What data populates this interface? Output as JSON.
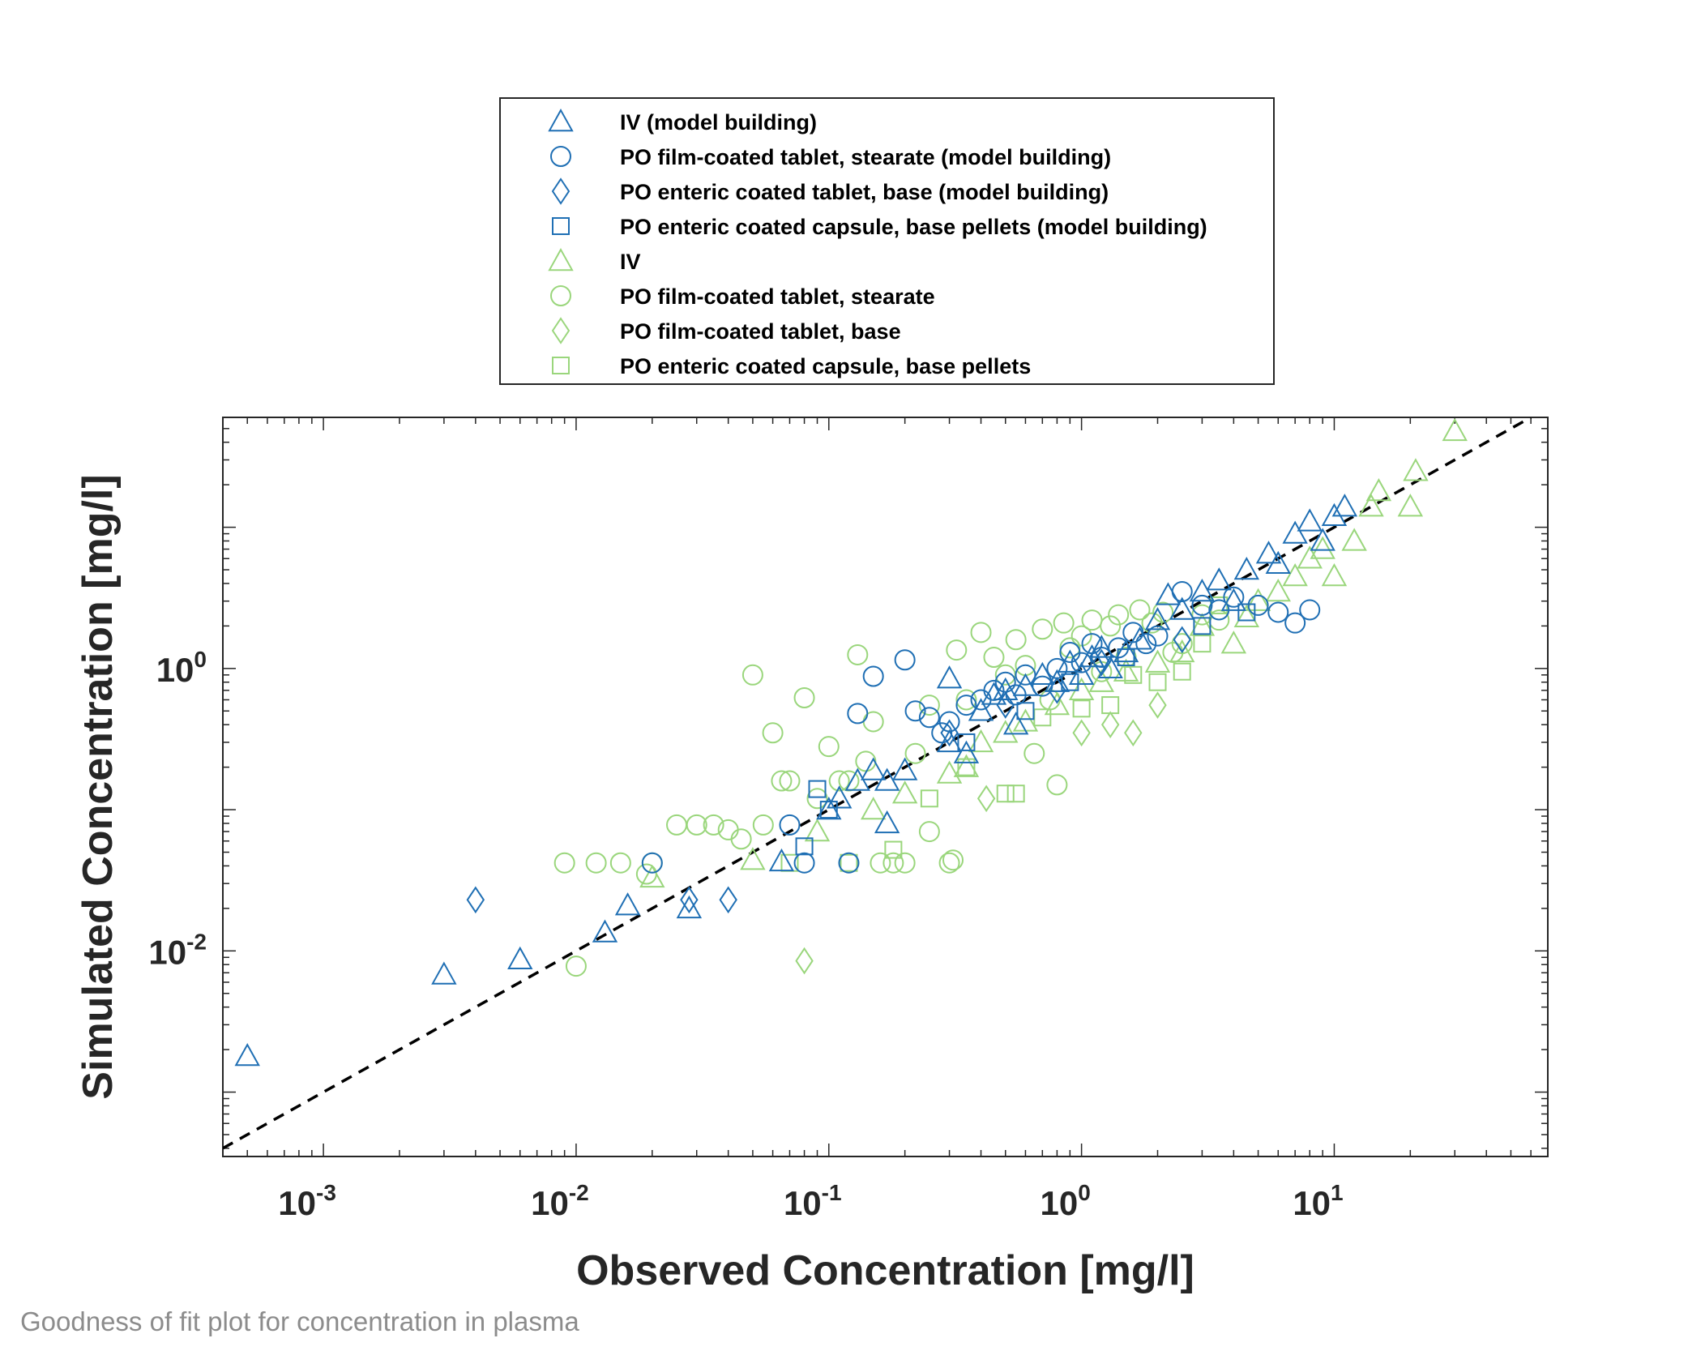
{
  "caption": "Goodness of fit plot for concentration in plasma",
  "colors": {
    "model_building": "#1f6fb4",
    "validation": "#9ad67c",
    "axes": "#262626",
    "identity_line": "#000000"
  },
  "chart_data": {
    "type": "scatter",
    "xscale": "log",
    "yscale": "log",
    "xlabel": "Observed Concentration [mg/l]",
    "ylabel": "Simulated Concentration [mg/l]",
    "xlim": [
      0.0004,
      70
    ],
    "ylim": [
      0.00035,
      60
    ],
    "xticks": [
      {
        "base": "10",
        "exp": "-3",
        "value": 0.001
      },
      {
        "base": "10",
        "exp": "-2",
        "value": 0.01
      },
      {
        "base": "10",
        "exp": "-1",
        "value": 0.1
      },
      {
        "base": "10",
        "exp": "0",
        "value": 1
      },
      {
        "base": "10",
        "exp": "1",
        "value": 10
      }
    ],
    "yticks": [
      {
        "base": "10",
        "exp": "-2",
        "value": 0.01
      },
      {
        "base": "10",
        "exp": "0",
        "value": 1
      }
    ],
    "identity_line": {
      "style": "dashed",
      "color": "#000000"
    },
    "legend_position": "top-center",
    "series": [
      {
        "name": "IV (model building)",
        "marker": "triangle",
        "color": "#1f6fb4",
        "points": [
          [
            0.0005,
            0.0018
          ],
          [
            0.003,
            0.0068
          ],
          [
            0.006,
            0.0087
          ],
          [
            0.013,
            0.0135
          ],
          [
            0.016,
            0.021
          ],
          [
            0.028,
            0.02
          ],
          [
            0.065,
            0.043
          ],
          [
            0.1,
            0.1
          ],
          [
            0.11,
            0.12
          ],
          [
            0.13,
            0.16
          ],
          [
            0.15,
            0.19
          ],
          [
            0.17,
            0.08
          ],
          [
            0.17,
            0.16
          ],
          [
            0.2,
            0.19
          ],
          [
            0.3,
            0.3
          ],
          [
            0.3,
            0.85
          ],
          [
            0.35,
            0.25
          ],
          [
            0.4,
            0.5
          ],
          [
            0.45,
            0.65
          ],
          [
            0.5,
            0.7
          ],
          [
            0.55,
            0.4
          ],
          [
            0.6,
            0.75
          ],
          [
            0.7,
            0.9
          ],
          [
            0.8,
            0.8
          ],
          [
            0.9,
            1.1
          ],
          [
            1.0,
            0.9
          ],
          [
            1.1,
            1.2
          ],
          [
            1.2,
            1.4
          ],
          [
            1.3,
            1.0
          ],
          [
            1.5,
            1.3
          ],
          [
            1.7,
            1.6
          ],
          [
            2.0,
            2.2
          ],
          [
            2.2,
            3.3
          ],
          [
            2.5,
            2.6
          ],
          [
            3.0,
            3.5
          ],
          [
            3.5,
            4.2
          ],
          [
            4.0,
            3.0
          ],
          [
            4.5,
            5.0
          ],
          [
            5.5,
            6.5
          ],
          [
            6.0,
            5.5
          ],
          [
            7.0,
            9.0
          ],
          [
            8.0,
            11.0
          ],
          [
            9.0,
            8.0
          ],
          [
            10.0,
            12.0
          ],
          [
            11.0,
            14.0
          ]
        ]
      },
      {
        "name": "PO film-coated tablet, stearate (model building)",
        "marker": "circle",
        "color": "#1f6fb4",
        "points": [
          [
            0.02,
            0.042
          ],
          [
            0.07,
            0.078
          ],
          [
            0.08,
            0.042
          ],
          [
            0.12,
            0.042
          ],
          [
            0.13,
            0.48
          ],
          [
            0.15,
            0.88
          ],
          [
            0.2,
            1.15
          ],
          [
            0.22,
            0.5
          ],
          [
            0.25,
            0.45
          ],
          [
            0.28,
            0.35
          ],
          [
            0.3,
            0.42
          ],
          [
            0.35,
            0.55
          ],
          [
            0.4,
            0.6
          ],
          [
            0.45,
            0.7
          ],
          [
            0.5,
            0.8
          ],
          [
            0.55,
            0.65
          ],
          [
            0.6,
            0.9
          ],
          [
            0.7,
            0.75
          ],
          [
            0.8,
            1.0
          ],
          [
            0.9,
            1.3
          ],
          [
            1.0,
            1.1
          ],
          [
            1.1,
            1.5
          ],
          [
            1.2,
            1.2
          ],
          [
            1.4,
            1.4
          ],
          [
            1.6,
            1.8
          ],
          [
            1.8,
            1.5
          ],
          [
            2.0,
            1.7
          ],
          [
            2.5,
            3.5
          ],
          [
            3.0,
            2.8
          ],
          [
            3.5,
            2.6
          ],
          [
            4.0,
            3.2
          ],
          [
            5.0,
            2.8
          ],
          [
            6.0,
            2.5
          ],
          [
            7.0,
            2.1
          ],
          [
            8.0,
            2.6
          ]
        ]
      },
      {
        "name": "PO enteric coated tablet, base (model building)",
        "marker": "diamond",
        "color": "#1f6fb4",
        "points": [
          [
            0.004,
            0.023
          ],
          [
            0.028,
            0.023
          ],
          [
            0.04,
            0.023
          ],
          [
            0.3,
            0.35
          ],
          [
            0.5,
            0.55
          ],
          [
            0.8,
            0.7
          ],
          [
            1.2,
            1.1
          ],
          [
            2.5,
            1.6
          ]
        ]
      },
      {
        "name": "PO enteric coated capsule, base pellets (model building)",
        "marker": "square",
        "color": "#1f6fb4",
        "points": [
          [
            0.08,
            0.055
          ],
          [
            0.09,
            0.14
          ],
          [
            0.1,
            0.1
          ],
          [
            0.35,
            0.3
          ],
          [
            0.6,
            0.5
          ],
          [
            0.9,
            0.8
          ],
          [
            1.5,
            1.2
          ],
          [
            3.0,
            2.0
          ],
          [
            4.5,
            2.5
          ]
        ]
      },
      {
        "name": "IV",
        "marker": "triangle",
        "color": "#9ad67c",
        "points": [
          [
            0.02,
            0.033
          ],
          [
            0.05,
            0.044
          ],
          [
            0.09,
            0.07
          ],
          [
            0.15,
            0.1
          ],
          [
            0.2,
            0.13
          ],
          [
            0.3,
            0.18
          ],
          [
            0.35,
            0.2
          ],
          [
            0.4,
            0.3
          ],
          [
            0.5,
            0.35
          ],
          [
            0.6,
            0.42
          ],
          [
            0.8,
            0.55
          ],
          [
            1.0,
            0.7
          ],
          [
            1.2,
            0.8
          ],
          [
            1.5,
            0.95
          ],
          [
            2.0,
            1.1
          ],
          [
            2.5,
            1.3
          ],
          [
            3.0,
            2.0
          ],
          [
            4.0,
            1.5
          ],
          [
            4.5,
            2.3
          ],
          [
            5.0,
            3.0
          ],
          [
            6.0,
            3.5
          ],
          [
            7.0,
            4.5
          ],
          [
            8.0,
            6.0
          ],
          [
            9.0,
            7.0
          ],
          [
            10.0,
            4.5
          ],
          [
            12.0,
            8.0
          ],
          [
            14.0,
            14.0
          ],
          [
            15.0,
            18.0
          ],
          [
            20.0,
            14.0
          ],
          [
            21.0,
            25.0
          ],
          [
            30.0,
            48.0
          ]
        ]
      },
      {
        "name": "PO film-coated tablet, stearate",
        "marker": "circle",
        "color": "#9ad67c",
        "points": [
          [
            0.009,
            0.042
          ],
          [
            0.01,
            0.0078
          ],
          [
            0.012,
            0.042
          ],
          [
            0.015,
            0.042
          ],
          [
            0.019,
            0.035
          ],
          [
            0.02,
            0.042
          ],
          [
            0.025,
            0.078
          ],
          [
            0.03,
            0.078
          ],
          [
            0.035,
            0.078
          ],
          [
            0.04,
            0.072
          ],
          [
            0.045,
            0.062
          ],
          [
            0.05,
            0.9
          ],
          [
            0.055,
            0.078
          ],
          [
            0.06,
            0.35
          ],
          [
            0.065,
            0.16
          ],
          [
            0.07,
            0.16
          ],
          [
            0.08,
            0.62
          ],
          [
            0.09,
            0.12
          ],
          [
            0.1,
            0.28
          ],
          [
            0.11,
            0.16
          ],
          [
            0.12,
            0.16
          ],
          [
            0.13,
            1.25
          ],
          [
            0.14,
            0.22
          ],
          [
            0.15,
            0.42
          ],
          [
            0.16,
            0.042
          ],
          [
            0.18,
            0.042
          ],
          [
            0.2,
            0.042
          ],
          [
            0.22,
            0.25
          ],
          [
            0.25,
            0.55
          ],
          [
            0.25,
            0.07
          ],
          [
            0.3,
            0.042
          ],
          [
            0.31,
            0.044
          ],
          [
            0.32,
            1.35
          ],
          [
            0.35,
            0.6
          ],
          [
            0.4,
            1.8
          ],
          [
            0.45,
            1.2
          ],
          [
            0.5,
            0.9
          ],
          [
            0.55,
            1.6
          ],
          [
            0.6,
            1.05
          ],
          [
            0.65,
            0.25
          ],
          [
            0.7,
            1.9
          ],
          [
            0.75,
            0.6
          ],
          [
            0.8,
            0.15
          ],
          [
            0.85,
            2.1
          ],
          [
            0.9,
            1.4
          ],
          [
            1.0,
            1.7
          ],
          [
            1.1,
            2.2
          ],
          [
            1.2,
            0.95
          ],
          [
            1.3,
            2.0
          ],
          [
            1.4,
            2.4
          ],
          [
            1.5,
            1.2
          ],
          [
            1.7,
            2.6
          ],
          [
            1.9,
            2.1
          ],
          [
            2.1,
            2.5
          ],
          [
            2.3,
            1.3
          ],
          [
            2.5,
            1.5
          ],
          [
            3.0,
            2.4
          ],
          [
            3.5,
            2.2
          ]
        ]
      },
      {
        "name": "PO film-coated tablet, base",
        "marker": "diamond",
        "color": "#9ad67c",
        "points": [
          [
            0.08,
            0.0085
          ],
          [
            0.42,
            0.12
          ],
          [
            1.0,
            0.35
          ],
          [
            1.3,
            0.4
          ],
          [
            1.6,
            0.35
          ],
          [
            2.0,
            0.55
          ]
        ]
      },
      {
        "name": "PO enteric coated capsule, base pellets",
        "marker": "square",
        "color": "#9ad67c",
        "points": [
          [
            0.07,
            0.042
          ],
          [
            0.12,
            0.042
          ],
          [
            0.18,
            0.052
          ],
          [
            0.25,
            0.12
          ],
          [
            0.35,
            0.2
          ],
          [
            0.5,
            0.13
          ],
          [
            0.55,
            0.13
          ],
          [
            0.7,
            0.45
          ],
          [
            1.0,
            0.52
          ],
          [
            1.3,
            0.55
          ],
          [
            1.6,
            0.9
          ],
          [
            2.0,
            0.8
          ],
          [
            2.5,
            0.95
          ],
          [
            3.0,
            1.5
          ],
          [
            3.5,
            2.8
          ]
        ]
      }
    ]
  }
}
